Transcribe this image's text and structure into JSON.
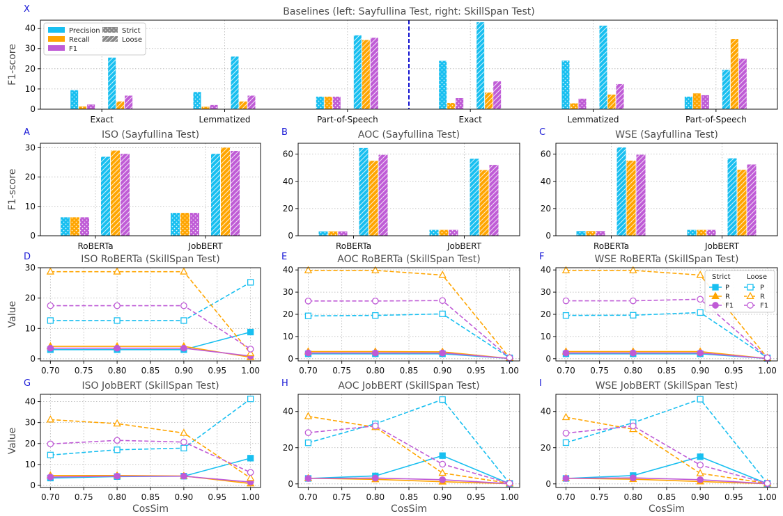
{
  "colors": {
    "P": "#18bff0",
    "R": "#ffa500",
    "F1": "#bf5bd6"
  },
  "chart_data": [
    {
      "id": "X",
      "letter": "X",
      "type": "bar",
      "title": "Baselines (left: Sayfullina Test, right: SkillSpan Test)",
      "ylabel": "F1-score",
      "xlabel": "",
      "ylim": [
        0,
        44
      ],
      "yticks": [
        0,
        10,
        20,
        30,
        40
      ],
      "categories": [
        "Exact",
        "Lemmatized",
        "Part-of-Speech",
        "Exact",
        "Lemmatized",
        "Part-of-Speech"
      ],
      "divider_after_group": 2,
      "metrics": [
        "Precision",
        "Recall",
        "F1"
      ],
      "series": [
        {
          "name": "Strict",
          "style": "dotted",
          "values": [
            [
              9.4,
              1.3,
              2.3
            ],
            [
              8.5,
              1.2,
              2.1
            ],
            [
              6.2,
              6.2,
              6.2
            ],
            [
              23.9,
              3.1,
              5.5
            ],
            [
              24.0,
              2.9,
              5.2
            ],
            [
              6.2,
              7.8,
              6.9
            ]
          ]
        },
        {
          "name": "Loose",
          "style": "hatched",
          "values": [
            [
              25.5,
              3.8,
              6.7
            ],
            [
              26.0,
              3.8,
              6.7
            ],
            [
              36.5,
              34.2,
              35.3
            ],
            [
              43.0,
              8.2,
              13.8
            ],
            [
              41.3,
              7.2,
              12.4
            ],
            [
              19.4,
              34.7,
              24.9
            ]
          ]
        }
      ],
      "legend": {
        "position": "top-left",
        "metric_labels": [
          "Precision",
          "Recall",
          "F1"
        ],
        "style_labels": [
          "Strict",
          "Loose"
        ]
      }
    },
    {
      "id": "A",
      "letter": "A",
      "type": "bar",
      "title": "ISO (Sayfullina Test)",
      "ylabel": "F1-score",
      "xlabel": "",
      "ylim": [
        0,
        31.5
      ],
      "yticks": [
        0,
        10,
        20,
        30
      ],
      "categories": [
        "RoBERTa",
        "JobBERT"
      ],
      "series": [
        {
          "name": "Strict",
          "style": "dotted",
          "values": [
            [
              6.3,
              6.3,
              6.3
            ],
            [
              7.8,
              7.8,
              7.8
            ]
          ]
        },
        {
          "name": "Loose",
          "style": "hatched",
          "values": [
            [
              26.9,
              29.0,
              27.9
            ],
            [
              27.9,
              30.0,
              28.9
            ]
          ]
        }
      ]
    },
    {
      "id": "B",
      "letter": "B",
      "type": "bar",
      "title": "AOC (Sayfullina Test)",
      "ylabel": "",
      "xlabel": "",
      "ylim": [
        0,
        68
      ],
      "yticks": [
        0,
        20,
        40,
        60
      ],
      "categories": [
        "RoBERTa",
        "JobBERT"
      ],
      "series": [
        {
          "name": "Strict",
          "style": "dotted",
          "values": [
            [
              3.2,
              3.2,
              3.2
            ],
            [
              4.3,
              4.3,
              4.3
            ]
          ]
        },
        {
          "name": "Loose",
          "style": "hatched",
          "values": [
            [
              64.5,
              55.1,
              59.5
            ],
            [
              56.6,
              48.3,
              52.1
            ]
          ]
        }
      ]
    },
    {
      "id": "C",
      "letter": "C",
      "type": "bar",
      "title": "WSE (Sayfullina Test)",
      "ylabel": "",
      "xlabel": "",
      "ylim": [
        0,
        68
      ],
      "yticks": [
        0,
        20,
        40,
        60
      ],
      "categories": [
        "RoBERTa",
        "JobBERT"
      ],
      "series": [
        {
          "name": "Strict",
          "style": "dotted",
          "values": [
            [
              3.4,
              3.4,
              3.4
            ],
            [
              4.3,
              4.3,
              4.3
            ]
          ]
        },
        {
          "name": "Loose",
          "style": "hatched",
          "values": [
            [
              64.9,
              55.2,
              59.6
            ],
            [
              56.9,
              48.5,
              52.4
            ]
          ]
        }
      ]
    },
    {
      "id": "D",
      "letter": "D",
      "type": "line",
      "title": "ISO RoBERTa (SkillSpan Test)",
      "ylabel": "Value",
      "xlabel": "",
      "xlim": [
        0.685,
        1.015
      ],
      "ylim": [
        -0.7,
        30
      ],
      "xticks": [
        "0.70",
        "0.75",
        "0.80",
        "0.85",
        "0.90",
        "0.95",
        "1.00"
      ],
      "yticks": [
        0,
        10,
        20,
        30
      ],
      "x": [
        0.7,
        0.8,
        0.9,
        1.0
      ],
      "series": [
        {
          "name": "P",
          "group": "Strict",
          "values": [
            3.0,
            3.0,
            3.0,
            8.8
          ]
        },
        {
          "name": "R",
          "group": "Strict",
          "values": [
            4.1,
            4.1,
            4.1,
            0.5
          ]
        },
        {
          "name": "F1",
          "group": "Strict",
          "values": [
            3.5,
            3.5,
            3.5,
            0.9
          ]
        },
        {
          "name": "P",
          "group": "Loose",
          "values": [
            12.6,
            12.6,
            12.6,
            25.2
          ]
        },
        {
          "name": "R",
          "group": "Loose",
          "values": [
            28.7,
            28.7,
            28.7,
            1.8
          ]
        },
        {
          "name": "F1",
          "group": "Loose",
          "values": [
            17.5,
            17.5,
            17.5,
            3.2
          ]
        }
      ]
    },
    {
      "id": "E",
      "letter": "E",
      "type": "line",
      "title": "AOC RoBERTa (SkillSpan Test)",
      "ylabel": "",
      "xlabel": "",
      "xlim": [
        0.685,
        1.015
      ],
      "ylim": [
        -1,
        41
      ],
      "xticks": [
        "0.70",
        "0.75",
        "0.80",
        "0.85",
        "0.90",
        "0.95",
        "1.00"
      ],
      "yticks": [
        0,
        10,
        20,
        30,
        40
      ],
      "x": [
        0.7,
        0.8,
        0.9,
        1.0
      ],
      "series": [
        {
          "name": "P",
          "group": "Strict",
          "values": [
            2.2,
            2.2,
            2.2,
            0.1
          ]
        },
        {
          "name": "R",
          "group": "Strict",
          "values": [
            3.2,
            3.2,
            3.1,
            0.1
          ]
        },
        {
          "name": "F1",
          "group": "Strict",
          "values": [
            2.6,
            2.6,
            2.6,
            0.1
          ]
        },
        {
          "name": "P",
          "group": "Loose",
          "values": [
            19.3,
            19.5,
            20.2,
            0.4
          ]
        },
        {
          "name": "R",
          "group": "Loose",
          "values": [
            39.8,
            39.8,
            37.7,
            0.4
          ]
        },
        {
          "name": "F1",
          "group": "Loose",
          "values": [
            26.0,
            26.0,
            26.2,
            0.4
          ]
        }
      ]
    },
    {
      "id": "F",
      "letter": "F",
      "type": "line",
      "title": "WSE RoBERTa (SkillSpan Test)",
      "ylabel": "",
      "xlabel": "",
      "xlim": [
        0.685,
        1.015
      ],
      "ylim": [
        -1,
        41
      ],
      "xticks": [
        "0.70",
        "0.75",
        "0.80",
        "0.85",
        "0.90",
        "0.95",
        "1.00"
      ],
      "yticks": [
        0,
        10,
        20,
        30,
        40
      ],
      "x": [
        0.7,
        0.8,
        0.9,
        1.0
      ],
      "series": [
        {
          "name": "P",
          "group": "Strict",
          "values": [
            2.2,
            2.2,
            2.2,
            0.1
          ]
        },
        {
          "name": "R",
          "group": "Strict",
          "values": [
            3.2,
            3.2,
            3.2,
            0.1
          ]
        },
        {
          "name": "F1",
          "group": "Strict",
          "values": [
            2.6,
            2.6,
            2.6,
            0.1
          ]
        },
        {
          "name": "P",
          "group": "Loose",
          "values": [
            19.5,
            19.6,
            20.8,
            0.4
          ]
        },
        {
          "name": "R",
          "group": "Loose",
          "values": [
            39.8,
            39.8,
            37.7,
            0.4
          ]
        },
        {
          "name": "F1",
          "group": "Loose",
          "values": [
            26.1,
            26.1,
            26.8,
            0.4
          ]
        }
      ],
      "legend": {
        "position": "top-right",
        "group_labels": [
          "Strict",
          "Loose"
        ],
        "entries": [
          "P",
          "R",
          "F1"
        ]
      }
    },
    {
      "id": "G",
      "letter": "G",
      "type": "line",
      "title": "ISO JobBERT (SkillSpan Test)",
      "ylabel": "Value",
      "xlabel": "CosSim",
      "xlim": [
        0.685,
        1.015
      ],
      "ylim": [
        -1,
        43.5
      ],
      "xticks": [
        "0.70",
        "0.75",
        "0.80",
        "0.85",
        "0.90",
        "0.95",
        "1.00"
      ],
      "yticks": [
        0,
        10,
        20,
        30,
        40
      ],
      "x": [
        0.7,
        0.8,
        0.9,
        1.0
      ],
      "series": [
        {
          "name": "P",
          "group": "Strict",
          "values": [
            3.5,
            4.2,
            4.4,
            13.0
          ]
        },
        {
          "name": "R",
          "group": "Strict",
          "values": [
            4.7,
            4.7,
            4.5,
            0.9
          ]
        },
        {
          "name": "F1",
          "group": "Strict",
          "values": [
            4.0,
            4.4,
            4.4,
            1.6
          ]
        },
        {
          "name": "P",
          "group": "Loose",
          "values": [
            14.5,
            17.0,
            17.8,
            41.3
          ]
        },
        {
          "name": "R",
          "group": "Loose",
          "values": [
            31.4,
            29.5,
            25.0,
            3.5
          ]
        },
        {
          "name": "F1",
          "group": "Loose",
          "values": [
            19.8,
            21.5,
            20.7,
            6.2
          ]
        }
      ]
    },
    {
      "id": "H",
      "letter": "H",
      "type": "line",
      "title": "AOC JobBERT (SkillSpan Test)",
      "ylabel": "",
      "xlabel": "CosSim",
      "xlim": [
        0.685,
        1.015
      ],
      "ylim": [
        -2,
        49.5
      ],
      "xticks": [
        "0.70",
        "0.75",
        "0.80",
        "0.85",
        "0.90",
        "0.95",
        "1.00"
      ],
      "yticks": [
        0,
        20,
        40
      ],
      "x": [
        0.7,
        0.8,
        0.9,
        1.0
      ],
      "series": [
        {
          "name": "P",
          "group": "Strict",
          "values": [
            3.0,
            4.4,
            15.6,
            0.1
          ]
        },
        {
          "name": "R",
          "group": "Strict",
          "values": [
            3.1,
            2.5,
            1.2,
            0.1
          ]
        },
        {
          "name": "F1",
          "group": "Strict",
          "values": [
            3.0,
            3.2,
            2.3,
            0.1
          ]
        },
        {
          "name": "P",
          "group": "Loose",
          "values": [
            22.7,
            33.2,
            46.6,
            0.3
          ]
        },
        {
          "name": "R",
          "group": "Loose",
          "values": [
            37.3,
            31.3,
            6.0,
            0.3
          ]
        },
        {
          "name": "F1",
          "group": "Loose",
          "values": [
            28.3,
            32.0,
            10.9,
            0.3
          ]
        }
      ]
    },
    {
      "id": "I",
      "letter": "I",
      "type": "line",
      "title": "WSE JobBERT (SkillSpan Test)",
      "ylabel": "",
      "xlabel": "CosSim",
      "xlim": [
        0.685,
        1.015
      ],
      "ylim": [
        -2,
        49.5
      ],
      "xticks": [
        "0.70",
        "0.75",
        "0.80",
        "0.85",
        "0.90",
        "0.95",
        "1.00"
      ],
      "yticks": [
        0,
        20,
        40
      ],
      "x": [
        0.7,
        0.8,
        0.9,
        1.0
      ],
      "series": [
        {
          "name": "P",
          "group": "Strict",
          "values": [
            3.0,
            4.6,
            15.0,
            0.1
          ]
        },
        {
          "name": "R",
          "group": "Strict",
          "values": [
            3.1,
            2.6,
            1.3,
            0.1
          ]
        },
        {
          "name": "F1",
          "group": "Strict",
          "values": [
            3.0,
            3.3,
            2.3,
            0.1
          ]
        },
        {
          "name": "P",
          "group": "Loose",
          "values": [
            22.8,
            33.8,
            46.8,
            0.3
          ]
        },
        {
          "name": "R",
          "group": "Loose",
          "values": [
            36.8,
            30.2,
            5.8,
            0.3
          ]
        },
        {
          "name": "F1",
          "group": "Loose",
          "values": [
            28.0,
            32.0,
            10.4,
            0.3
          ]
        }
      ]
    }
  ]
}
